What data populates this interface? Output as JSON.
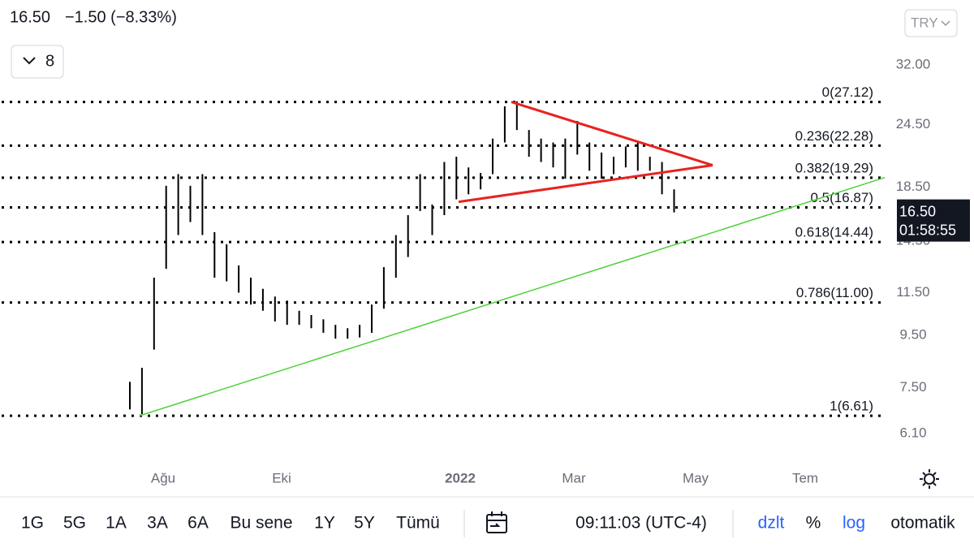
{
  "header": {
    "price": "16.50",
    "change": "−1.50 (−8.33%)",
    "interval": "8",
    "currency": "TRY"
  },
  "chart_data": {
    "type": "hilo",
    "log_scale": true,
    "color": "#000000",
    "ylim": [
      5.35,
      42.9
    ],
    "yticks": [
      {
        "value": 6.1,
        "label": "6.10"
      },
      {
        "value": 7.5,
        "label": "7.50"
      },
      {
        "value": 9.5,
        "label": "9.50"
      },
      {
        "value": 11.5,
        "label": "11.50"
      },
      {
        "value": 14.5,
        "label": "14.50"
      },
      {
        "value": 18.5,
        "label": "18.50"
      },
      {
        "value": 24.5,
        "label": "24.50"
      },
      {
        "value": 32,
        "label": "32.00"
      }
    ],
    "x_labels": [
      "Ağu",
      "Eki",
      "2022",
      "Mar",
      "May",
      "Tem"
    ],
    "high": [
      7.7,
      8.2,
      12.3,
      18.6,
      19.6,
      18.6,
      19.6,
      15.1,
      14.3,
      13.0,
      12.3,
      11.7,
      11.3,
      11.1,
      10.6,
      10.4,
      10.2,
      9.95,
      9.8,
      9.95,
      10.9,
      12.9,
      14.9,
      16.3,
      19.6,
      17.1,
      20.7,
      21.2,
      20.2,
      19.7,
      23.0,
      26.6,
      27.2,
      23.9,
      23.0,
      22.6,
      23.0,
      24.9,
      22.6,
      21.6,
      21.2,
      22.2,
      22.6,
      21.2,
      20.7,
      18.3
    ],
    "low": [
      6.8,
      6.66,
      8.9,
      12.8,
      14.9,
      15.8,
      14.9,
      12.3,
      12.1,
      11.5,
      10.9,
      10.6,
      10.1,
      9.95,
      9.95,
      9.8,
      9.6,
      9.35,
      9.35,
      9.4,
      9.6,
      10.7,
      12.3,
      13.5,
      16.6,
      14.9,
      16.3,
      17.5,
      17.9,
      18.3,
      19.6,
      22.6,
      23.9,
      21.2,
      20.7,
      20.2,
      19.2,
      21.4,
      19.9,
      19.2,
      19.6,
      20.2,
      19.9,
      19.9,
      17.9,
      16.5
    ],
    "fib_levels": {
      "values": [
        27.12,
        22.28,
        19.29,
        16.87,
        14.44,
        11.0,
        6.61
      ],
      "value_labels": [
        "0(27.12)",
        "0.236(22.28)",
        "0.382(19.29)",
        "0.5(16.87)",
        "0.618(14.44)",
        "0.786(11.00)",
        "1(6.61)"
      ]
    },
    "trendlines": [
      {
        "color": "#e8231f",
        "values": [
          27.12,
          20.4
        ]
      },
      {
        "color": "#e8231f",
        "values": [
          17.3,
          20.4
        ]
      },
      {
        "color": "#4cd137",
        "values": [
          6.61,
          19.3
        ]
      }
    ],
    "price_tag": {
      "value": 16.5,
      "label": "16.50",
      "countdown": "01:58:55"
    }
  },
  "toolbar": {
    "ranges": [
      "1G",
      "5G",
      "1A",
      "3A",
      "6A",
      "Bu sene",
      "1Y",
      "5Y",
      "Tümü"
    ],
    "time": "09:11:03 (UTC-4)",
    "options": [
      "dzlt",
      "%",
      "log",
      "otomatik"
    ]
  }
}
